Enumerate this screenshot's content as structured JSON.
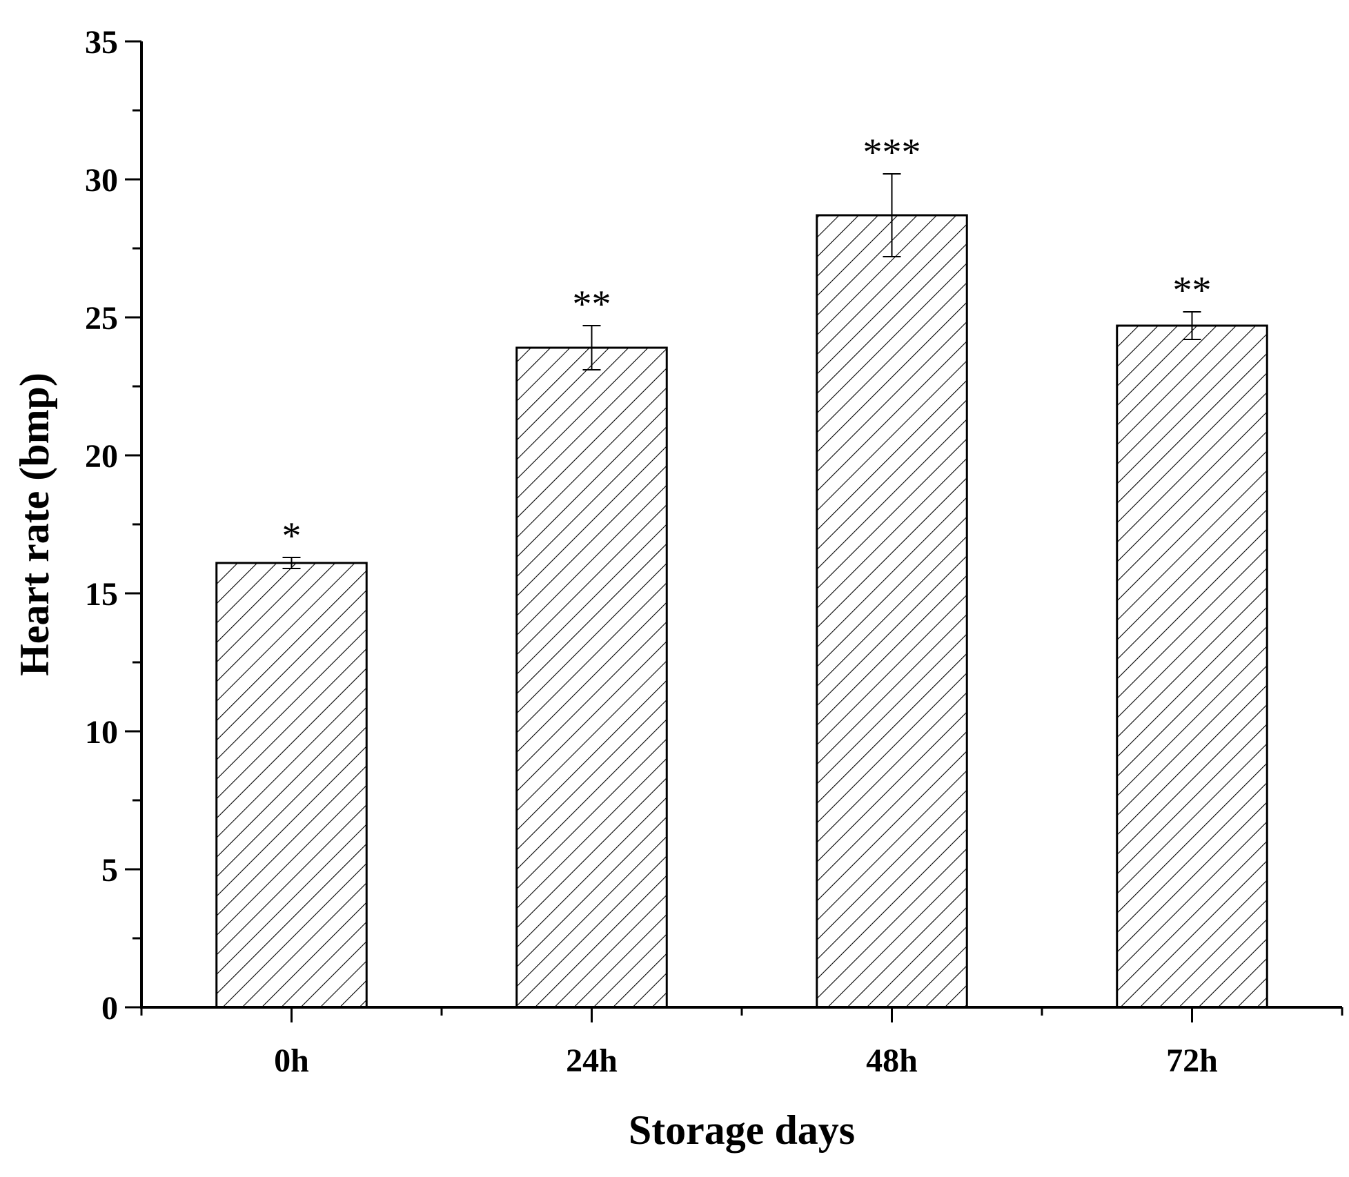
{
  "chart_data": {
    "type": "bar",
    "categories": [
      "0h",
      "24h",
      "48h",
      "72h"
    ],
    "values": [
      16.1,
      23.9,
      28.7,
      24.7
    ],
    "errors": [
      0.2,
      0.8,
      1.5,
      0.5
    ],
    "annotations": [
      "*",
      "**",
      "***",
      "**"
    ],
    "title": "",
    "xlabel": "Storage days",
    "ylabel": "Heart rate (bmp)",
    "ylim": [
      0,
      35
    ],
    "yticks": [
      0,
      5,
      10,
      15,
      20,
      25,
      30,
      35
    ],
    "grid": false,
    "bar_fill": "hatched",
    "colors": {
      "bar_stroke": "#000000",
      "hatch": "#000000",
      "background": "#ffffff"
    }
  }
}
